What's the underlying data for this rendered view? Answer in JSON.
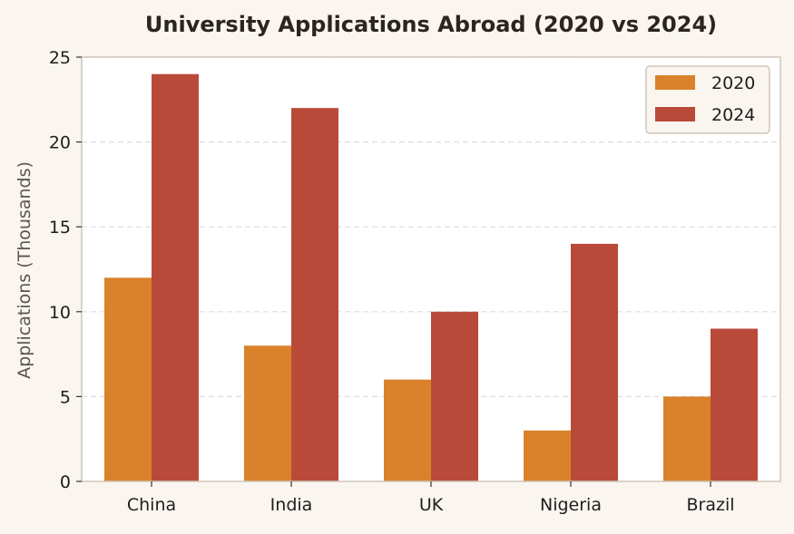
{
  "chart_data": {
    "type": "bar",
    "title": "University Applications Abroad (2020 vs 2024)",
    "xlabel": "",
    "ylabel": "Applications (Thousands)",
    "categories": [
      "China",
      "India",
      "UK",
      "Nigeria",
      "Brazil"
    ],
    "series": [
      {
        "name": "2020",
        "values": [
          12,
          8,
          6,
          3,
          5
        ],
        "color": "#d9822b"
      },
      {
        "name": "2024",
        "values": [
          24,
          22,
          10,
          14,
          9
        ],
        "color": "#b94a3a"
      }
    ],
    "ylim": [
      0,
      25
    ],
    "yticks": [
      0,
      5,
      10,
      15,
      20,
      25
    ],
    "grid": true,
    "legend_position": "top-right"
  },
  "colors": {
    "background": "#faf5ef",
    "plot_background": "#ffffff",
    "axes_border": "#cfc6ba",
    "grid": "#dddddd"
  }
}
